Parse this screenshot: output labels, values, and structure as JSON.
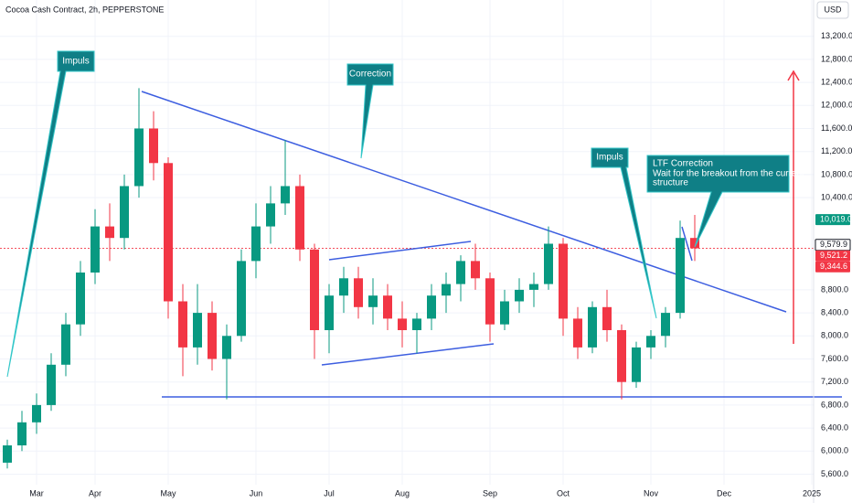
{
  "chart_data": {
    "type": "candlestick",
    "title": "Cocoa Cash Contract, 2h, PEPPERSTONE",
    "currency": "USD",
    "categories": [
      null,
      null,
      "Mar",
      null,
      null,
      null,
      "Apr",
      null,
      null,
      null,
      null,
      "May",
      null,
      null,
      null,
      null,
      null,
      "Jun",
      null,
      null,
      null,
      null,
      "Jul",
      null,
      null,
      null,
      null,
      "Aug",
      null,
      null,
      null,
      null,
      null,
      "Sep",
      null,
      null,
      null,
      null,
      "Oct",
      null,
      null,
      null,
      null,
      null,
      "Nov",
      null,
      null,
      null,
      null,
      "Dec",
      null,
      null,
      null,
      null,
      null,
      "2025"
    ],
    "open": [
      5800,
      6100,
      6500,
      6800,
      7500,
      8200,
      9100,
      9900,
      9700,
      10600,
      11600,
      11000,
      8600,
      7800,
      8400,
      7600,
      8000,
      9300,
      9900,
      10300,
      10600,
      9500,
      8100,
      8700,
      9000,
      8500,
      8700,
      8300,
      8100,
      8300,
      8700,
      8900,
      9300,
      9000,
      8200,
      8600,
      8800,
      8900,
      9600,
      8300,
      7800,
      8500,
      8100,
      7200,
      7800,
      8000,
      8400,
      9700,
      null,
      null,
      null,
      null,
      null,
      null,
      null,
      null
    ],
    "high": [
      6200,
      6700,
      7000,
      7700,
      8400,
      9300,
      10200,
      10300,
      10800,
      12300,
      11900,
      11100,
      8900,
      8900,
      8600,
      8200,
      9500,
      10300,
      10600,
      11400,
      10800,
      9600,
      8900,
      9200,
      9200,
      9000,
      8900,
      8600,
      8400,
      8900,
      9100,
      9400,
      9600,
      9100,
      8800,
      9000,
      9100,
      9900,
      9700,
      8500,
      8600,
      8800,
      8200,
      7900,
      8100,
      8500,
      10000,
      10100,
      null,
      null,
      null,
      null,
      null,
      null,
      null,
      null
    ],
    "low": [
      5700,
      6000,
      6300,
      6700,
      7300,
      8000,
      8900,
      9300,
      9500,
      10400,
      10700,
      8300,
      7300,
      7500,
      7400,
      6900,
      7900,
      9000,
      9600,
      10100,
      9300,
      7600,
      7700,
      8400,
      8300,
      8200,
      8100,
      7800,
      7700,
      8100,
      8400,
      8600,
      8800,
      7900,
      8100,
      8400,
      8500,
      8800,
      8000,
      7600,
      7700,
      7900,
      6900,
      7100,
      7600,
      7800,
      8300,
      9300,
      null,
      null,
      null,
      null,
      null,
      null,
      null,
      null
    ],
    "close": [
      6100,
      6500,
      6800,
      7500,
      8200,
      9100,
      9900,
      9700,
      10600,
      11600,
      11000,
      8600,
      7800,
      8400,
      7600,
      8000,
      9300,
      9900,
      10300,
      10600,
      9500,
      8100,
      8700,
      9000,
      8500,
      8700,
      8300,
      8100,
      8300,
      8700,
      8900,
      9300,
      9000,
      8200,
      8600,
      8800,
      8900,
      9600,
      8300,
      7800,
      8500,
      8100,
      7200,
      7800,
      8000,
      8400,
      9700,
      9520,
      null,
      null,
      null,
      null,
      null,
      null,
      null,
      null
    ],
    "up_color": "#089981",
    "down_color": "#f23645",
    "ylim": [
      5100,
      13830
    ],
    "yticks": [
      {
        "value": 5600,
        "label": "5,600.0"
      },
      {
        "value": 6000,
        "label": "6,000.0"
      },
      {
        "value": 6400,
        "label": "6,400.0"
      },
      {
        "value": 6800,
        "label": "6,800.0"
      },
      {
        "value": 7200,
        "label": "7,200.0"
      },
      {
        "value": 7600,
        "label": "7,600.0"
      },
      {
        "value": 8000,
        "label": "8,000.0"
      },
      {
        "value": 8400,
        "label": "8,400.0"
      },
      {
        "value": 8800,
        "label": "8,800.0"
      },
      {
        "value": 10400,
        "label": "10,400.0"
      },
      {
        "value": 10800,
        "label": "10,800.0"
      },
      {
        "value": 11200,
        "label": "11,200.0"
      },
      {
        "value": 11600,
        "label": "11,600.0"
      },
      {
        "value": 12000,
        "label": "12,000.0"
      },
      {
        "value": 12400,
        "label": "12,400.0"
      },
      {
        "value": 12800,
        "label": "12,800.0"
      },
      {
        "value": 13200,
        "label": "13,200.0"
      }
    ],
    "grid": true,
    "price_labels": [
      {
        "value": 10019,
        "label": "10,019.0",
        "color": "#089981"
      },
      {
        "value": 9579.9,
        "label": "9,579.9",
        "color": "#ffffff"
      },
      {
        "value": 9521.2,
        "label": "9,521.2",
        "color": "#f23645"
      },
      {
        "value": 9344.6,
        "label": "9,344.6",
        "color": "#f23645"
      }
    ],
    "annotations": [
      "Impuls",
      "Correction",
      "Impuls"
    ],
    "ltf_note": [
      "LTF Correction",
      "Wait for the breakout from the current",
      "structure"
    ]
  }
}
